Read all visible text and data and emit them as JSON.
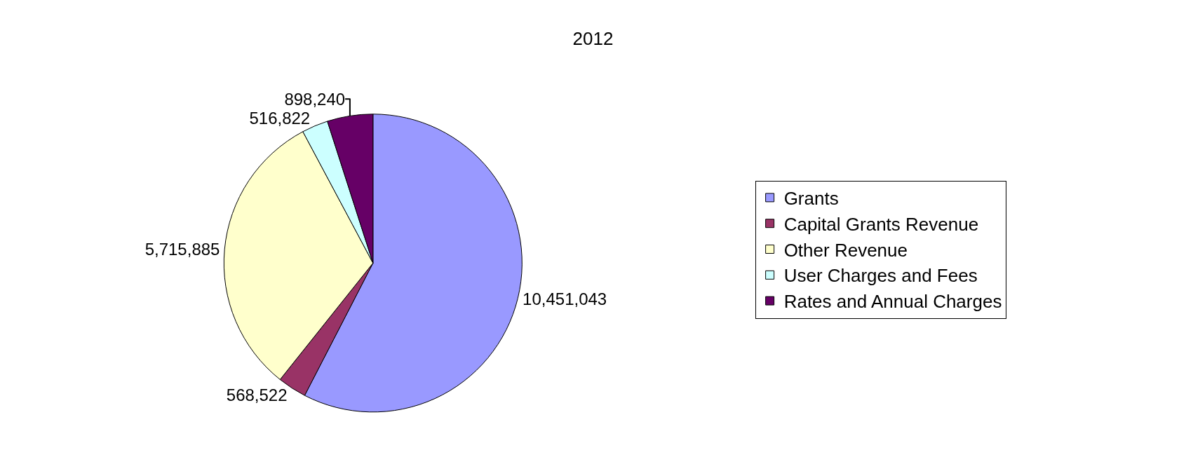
{
  "chart_data": {
    "type": "pie",
    "title": "2012",
    "categories": [
      "Grants",
      "Capital Grants Revenue",
      "Other Revenue",
      "User Charges and Fees",
      "Rates and Annual Charges"
    ],
    "values": [
      10451043,
      568522,
      5715885,
      516822,
      898240
    ],
    "colors": [
      "#9999ff",
      "#993366",
      "#ffffcc",
      "#ccffff",
      "#660066"
    ],
    "value_labels": [
      "10,451,043",
      "568,522",
      "5,715,885",
      "516,822",
      "898,240"
    ],
    "legend": "right"
  }
}
